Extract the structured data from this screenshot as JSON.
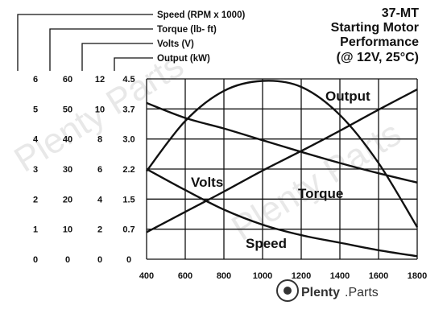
{
  "chart_data": {
    "type": "line",
    "title_lines": [
      "37-MT",
      "Starting Motor",
      "Performance",
      "(@ 12V, 25°C)"
    ],
    "x": [
      400,
      600,
      800,
      1000,
      1200,
      1400,
      1600,
      1800
    ],
    "x_tick_labels": [
      "400",
      "600",
      "800",
      "1000",
      "1200",
      "1400",
      "1600",
      "1800"
    ],
    "xlim": [
      400,
      1800
    ],
    "grid": true,
    "axes": [
      {
        "name": "Speed (RPM x 1000)",
        "tick_labels": [
          "0",
          "1",
          "2",
          "3",
          "4",
          "5",
          "6"
        ],
        "ylim": [
          0,
          6
        ]
      },
      {
        "name": "Torque (lb- ft)",
        "tick_labels": [
          "0",
          "10",
          "20",
          "30",
          "40",
          "50",
          "60"
        ],
        "ylim": [
          0,
          60
        ]
      },
      {
        "name": "Volts (V)",
        "tick_labels": [
          "0",
          "2",
          "4",
          "6",
          "8",
          "10",
          "12"
        ],
        "ylim": [
          0,
          12
        ]
      },
      {
        "name": "Output (kW)",
        "tick_labels": [
          "0",
          "0.7",
          "1.5",
          "2.2",
          "3.0",
          "3.7",
          "4.5"
        ],
        "ylim": [
          0,
          4.5
        ]
      }
    ],
    "series": [
      {
        "name": "Output",
        "axis": "Output (kW)",
        "values": [
          2.2,
          3.45,
          4.2,
          4.45,
          4.3,
          3.6,
          2.4,
          0.8
        ]
      },
      {
        "name": "Torque",
        "axis": "Torque (lb- ft)",
        "values": [
          52,
          47,
          43.5,
          39.6,
          35.7,
          32,
          28.6,
          25.5
        ]
      },
      {
        "name": "Volts",
        "axis": "Volts (V)",
        "values": [
          1.8,
          3.15,
          4.5,
          5.9,
          7.2,
          8.55,
          9.95,
          11.3
        ]
      },
      {
        "name": "Speed",
        "axis": "Speed (RPM x 1000)",
        "values": [
          3,
          2.3,
          1.65,
          1.15,
          0.8,
          0.55,
          0.3,
          0.1
        ]
      }
    ]
  },
  "watermark": {
    "brand_name": "Plenty",
    "brand_suffix": ".Parts",
    "faint_text": "Plenty Parts"
  }
}
